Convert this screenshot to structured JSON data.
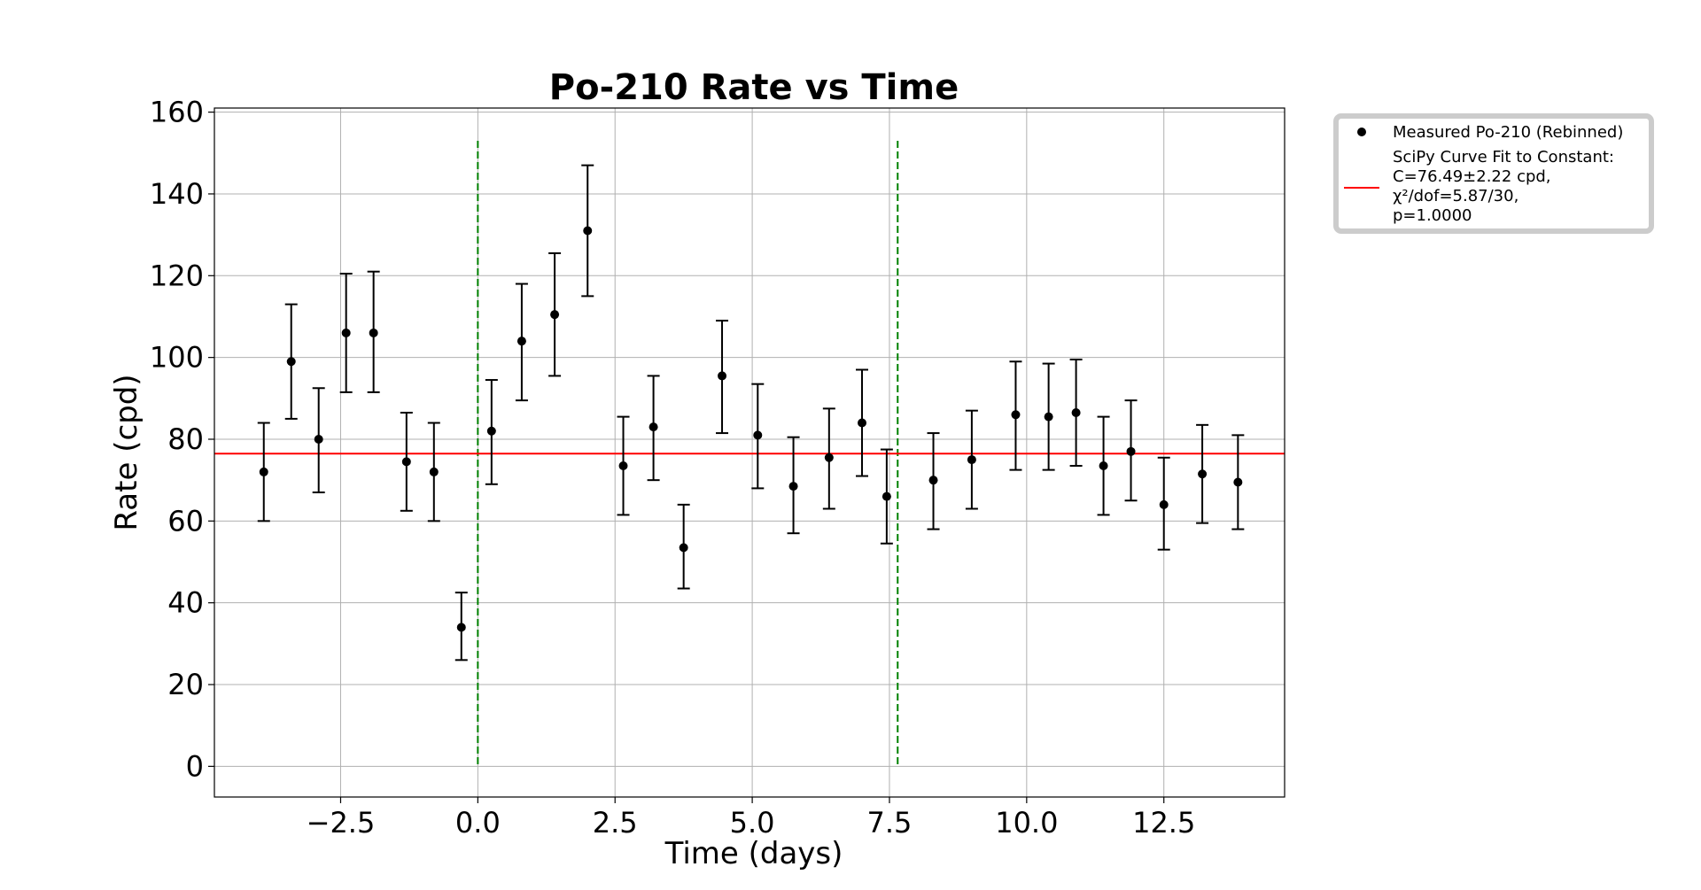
{
  "chart_data": {
    "type": "scatter",
    "title": "Po-210 Rate vs Time",
    "xlabel": "Time (days)",
    "ylabel": "Rate (cpd)",
    "xlim": [
      -4.8,
      14.7
    ],
    "ylim": [
      -7.5,
      161
    ],
    "xticks": [
      -2.5,
      0.0,
      2.5,
      5.0,
      7.5,
      10.0,
      12.5
    ],
    "xtick_labels": [
      "−2.5",
      "0.0",
      "2.5",
      "5.0",
      "7.5",
      "10.0",
      "12.5"
    ],
    "yticks": [
      0,
      20,
      40,
      60,
      80,
      100,
      120,
      140,
      160
    ],
    "ytick_labels": [
      "0",
      "20",
      "40",
      "60",
      "80",
      "100",
      "120",
      "140",
      "160"
    ],
    "grid": true,
    "legend_position": "outside-top-right",
    "series": [
      {
        "name": "Measured Po-210 (Rebinned)",
        "kind": "errorbar",
        "color": "#000000",
        "points": [
          {
            "x": -3.9,
            "y": 72.0,
            "lo": 60.0,
            "hi": 84.0
          },
          {
            "x": -3.4,
            "y": 99.0,
            "lo": 85.0,
            "hi": 113.0
          },
          {
            "x": -2.9,
            "y": 80.0,
            "lo": 67.0,
            "hi": 92.5
          },
          {
            "x": -2.4,
            "y": 106.0,
            "lo": 91.5,
            "hi": 120.5
          },
          {
            "x": -1.9,
            "y": 106.0,
            "lo": 91.5,
            "hi": 121.0
          },
          {
            "x": -1.3,
            "y": 74.5,
            "lo": 62.5,
            "hi": 86.5
          },
          {
            "x": -0.8,
            "y": 72.0,
            "lo": 60.0,
            "hi": 84.0
          },
          {
            "x": -0.3,
            "y": 34.0,
            "lo": 26.0,
            "hi": 42.5
          },
          {
            "x": 0.25,
            "y": 82.0,
            "lo": 69.0,
            "hi": 94.5
          },
          {
            "x": 0.8,
            "y": 104.0,
            "lo": 89.5,
            "hi": 118.0
          },
          {
            "x": 1.4,
            "y": 110.5,
            "lo": 95.5,
            "hi": 125.5
          },
          {
            "x": 2.0,
            "y": 131.0,
            "lo": 115.0,
            "hi": 147.0
          },
          {
            "x": 2.65,
            "y": 73.5,
            "lo": 61.5,
            "hi": 85.5
          },
          {
            "x": 3.2,
            "y": 83.0,
            "lo": 70.0,
            "hi": 95.5
          },
          {
            "x": 3.75,
            "y": 53.5,
            "lo": 43.5,
            "hi": 64.0
          },
          {
            "x": 4.45,
            "y": 95.5,
            "lo": 81.5,
            "hi": 109.0
          },
          {
            "x": 5.1,
            "y": 81.0,
            "lo": 68.0,
            "hi": 93.5
          },
          {
            "x": 5.75,
            "y": 68.5,
            "lo": 57.0,
            "hi": 80.5
          },
          {
            "x": 6.4,
            "y": 75.5,
            "lo": 63.0,
            "hi": 87.5
          },
          {
            "x": 7.0,
            "y": 84.0,
            "lo": 71.0,
            "hi": 97.0
          },
          {
            "x": 7.45,
            "y": 66.0,
            "lo": 54.5,
            "hi": 77.5
          },
          {
            "x": 8.3,
            "y": 70.0,
            "lo": 58.0,
            "hi": 81.5
          },
          {
            "x": 9.0,
            "y": 75.0,
            "lo": 63.0,
            "hi": 87.0
          },
          {
            "x": 9.8,
            "y": 86.0,
            "lo": 72.5,
            "hi": 99.0
          },
          {
            "x": 10.4,
            "y": 85.5,
            "lo": 72.5,
            "hi": 98.5
          },
          {
            "x": 10.9,
            "y": 86.5,
            "lo": 73.5,
            "hi": 99.5
          },
          {
            "x": 11.4,
            "y": 73.5,
            "lo": 61.5,
            "hi": 85.5
          },
          {
            "x": 11.9,
            "y": 77.0,
            "lo": 65.0,
            "hi": 89.5
          },
          {
            "x": 12.5,
            "y": 64.0,
            "lo": 53.0,
            "hi": 75.5
          },
          {
            "x": 13.2,
            "y": 71.5,
            "lo": 59.5,
            "hi": 83.5
          },
          {
            "x": 13.85,
            "y": 69.5,
            "lo": 58.0,
            "hi": 81.0
          }
        ]
      },
      {
        "name": "SciPy Curve Fit to Constant:\nC=76.49±2.22 cpd,\nχ²/dof=5.87/30,\np=1.0000",
        "kind": "hline",
        "color": "#ff0000",
        "y": 76.49
      }
    ],
    "vlines": [
      {
        "x": 0.0,
        "y_from": 0,
        "y_to": 153,
        "color": "#008000",
        "style": "dashed"
      },
      {
        "x": 7.65,
        "y_from": 0,
        "y_to": 153,
        "color": "#008000",
        "style": "dashed"
      }
    ]
  }
}
